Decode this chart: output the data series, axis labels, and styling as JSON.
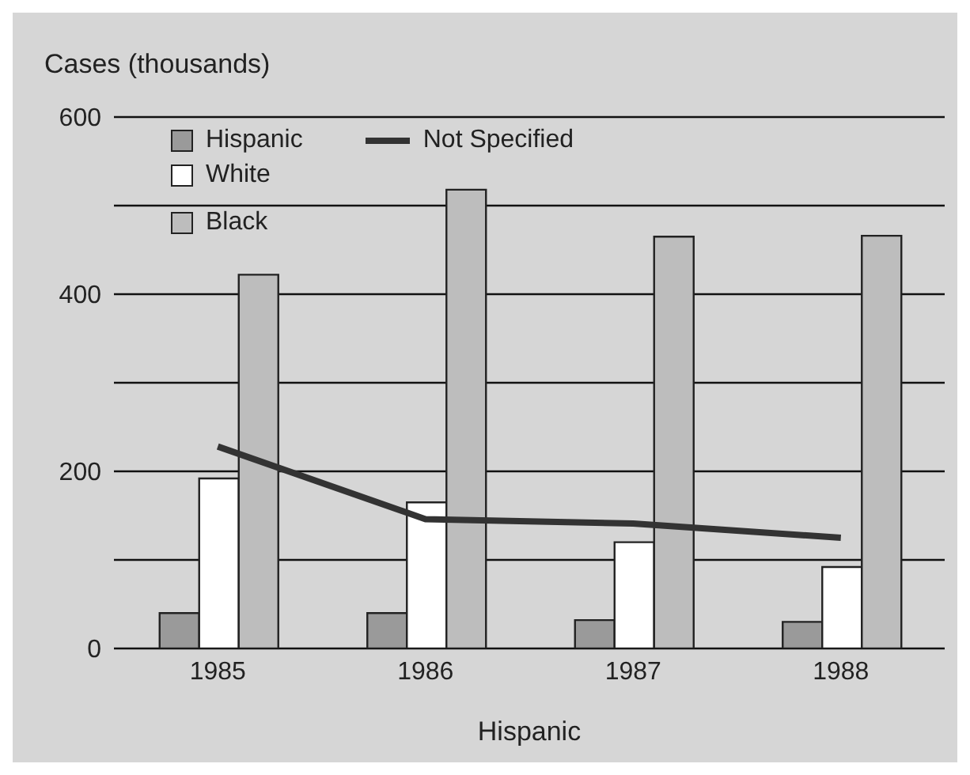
{
  "chart_data": {
    "type": "bar",
    "ylabel": "Cases (thousands)",
    "xlabel": "Hispanic",
    "categories": [
      "1985",
      "1986",
      "1987",
      "1988"
    ],
    "series": [
      {
        "name": "Hispanic",
        "color": "#9a9a9a",
        "values": [
          40,
          40,
          32,
          30
        ]
      },
      {
        "name": "White",
        "color": "#ffffff",
        "values": [
          192,
          165,
          120,
          92
        ]
      },
      {
        "name": "Black",
        "color": "#bdbdbd",
        "values": [
          422,
          518,
          465,
          466
        ]
      },
      {
        "name": "Not Specified",
        "type": "line",
        "color": "#333333",
        "values": [
          228,
          146,
          141,
          125
        ]
      }
    ],
    "ylim": [
      0,
      600
    ],
    "yticks": [
      0,
      {
        "value": 100,
        "label": null
      },
      200,
      {
        "value": 300,
        "label": null
      },
      400,
      {
        "value": 500,
        "label": null
      },
      600
    ],
    "grid": "y",
    "legend": "top left",
    "marker": "none"
  }
}
